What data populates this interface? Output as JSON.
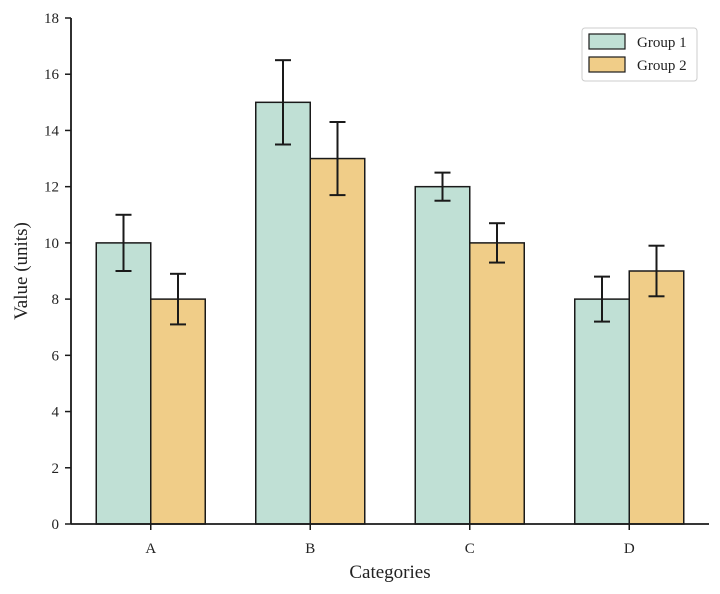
{
  "chart_data": {
    "type": "bar",
    "title": "",
    "xlabel": "Categories",
    "ylabel": "Value (units)",
    "categories": [
      "A",
      "B",
      "C",
      "D"
    ],
    "series": [
      {
        "name": "Group 1",
        "color": "#c0e0d5",
        "values": [
          10,
          15,
          12,
          8
        ],
        "errors": [
          1.0,
          1.5,
          0.5,
          0.8
        ]
      },
      {
        "name": "Group 2",
        "color": "#f0cd88",
        "values": [
          8,
          13,
          10,
          9
        ],
        "errors": [
          0.9,
          1.3,
          0.7,
          0.9
        ]
      }
    ],
    "ylim": [
      0,
      18
    ],
    "yticks": [
      0,
      2,
      4,
      6,
      8,
      10,
      12,
      14,
      16,
      18
    ],
    "grid": false,
    "legend_position": "top-right"
  }
}
